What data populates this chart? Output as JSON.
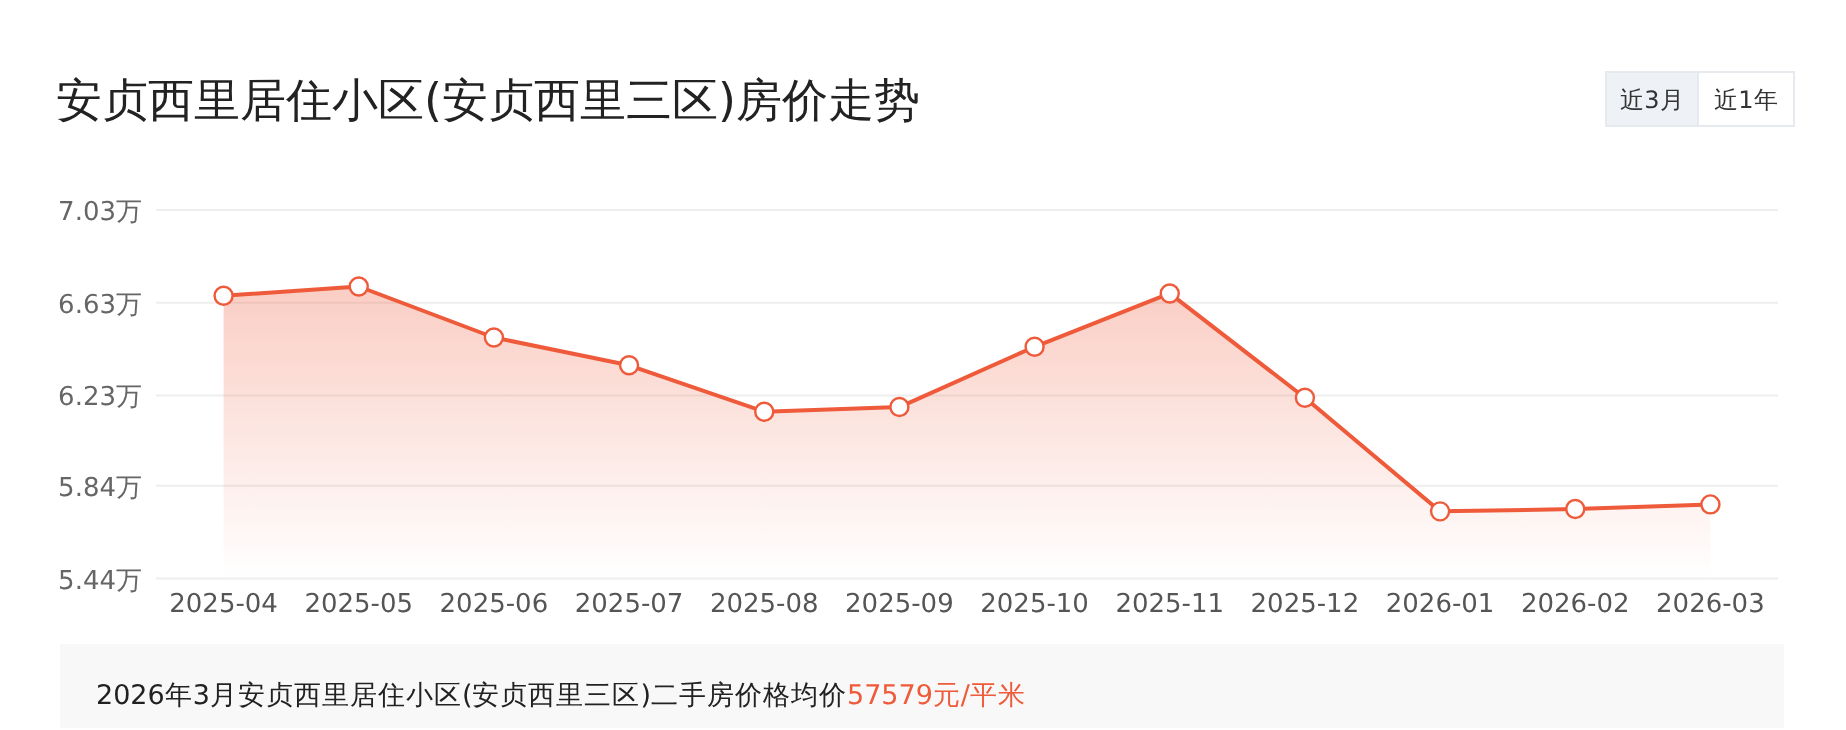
{
  "chart_data": {
    "type": "area",
    "title": "安贞西里居住小区(安贞西里三区)房价走势",
    "categories": [
      "2025-04",
      "2025-05",
      "2025-06",
      "2025-07",
      "2025-08",
      "2025-09",
      "2025-10",
      "2025-11",
      "2025-12",
      "2026-01",
      "2026-02",
      "2026-03"
    ],
    "values": [
      6.66,
      6.7,
      6.48,
      6.36,
      6.16,
      6.18,
      6.44,
      6.67,
      6.22,
      5.73,
      5.74,
      5.76
    ],
    "color": "#ee5a3a",
    "ylim": [
      5.44,
      7.03
    ],
    "yticks": [
      {
        "value": 5.44,
        "label": "5.44万"
      },
      {
        "value": 5.84,
        "label": "5.84万"
      },
      {
        "value": 6.23,
        "label": "6.23万"
      },
      {
        "value": 6.63,
        "label": "6.63万"
      },
      {
        "value": 7.03,
        "label": "7.03万"
      }
    ],
    "grid": "y",
    "marker": "circle",
    "line_style": "solid",
    "annotations": [
      "近3月",
      "近1年",
      "2026年3月安贞西里居住小区(安贞西里三区)二手房价格均价",
      "57579元/平米"
    ]
  }
}
